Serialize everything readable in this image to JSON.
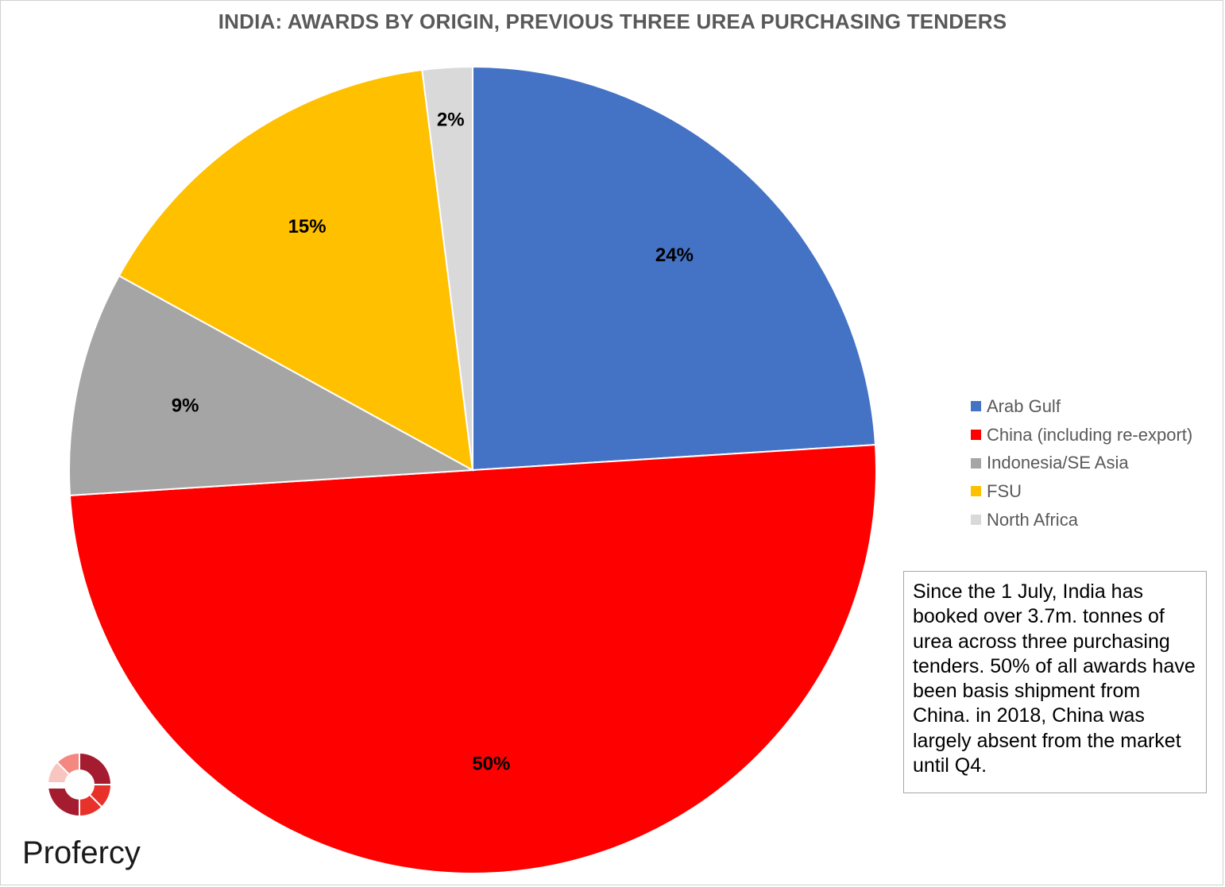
{
  "chart_data": {
    "type": "pie",
    "title": "INDIA: AWARDS BY ORIGIN, PREVIOUS THREE UREA PURCHASING TENDERS",
    "slices": [
      {
        "label": "Arab Gulf",
        "value": 24,
        "display": "24%",
        "color": "#4472C4"
      },
      {
        "label": "China (including re-export)",
        "value": 50,
        "display": "50%",
        "color": "#FF0000"
      },
      {
        "label": "Indonesia/SE Asia",
        "value": 9,
        "display": "9%",
        "color": "#A5A5A5"
      },
      {
        "label": "FSU",
        "value": 15,
        "display": "15%",
        "color": "#FFC000"
      },
      {
        "label": "North Africa",
        "value": 2,
        "display": "2%",
        "color": "#D9D9D9"
      }
    ],
    "legend_position": "right"
  },
  "note": {
    "text": "Since the 1 July, India has booked over 3.7m. tonnes of urea across three purchasing tenders. 50% of all awards have been basis shipment from China. in 2018, China was largely absent from the market until Q4."
  },
  "brand": {
    "name": "Profercy",
    "logo_colors": [
      "#A51C30",
      "#E8312A",
      "#F4877F",
      "#F9C5C0"
    ]
  }
}
